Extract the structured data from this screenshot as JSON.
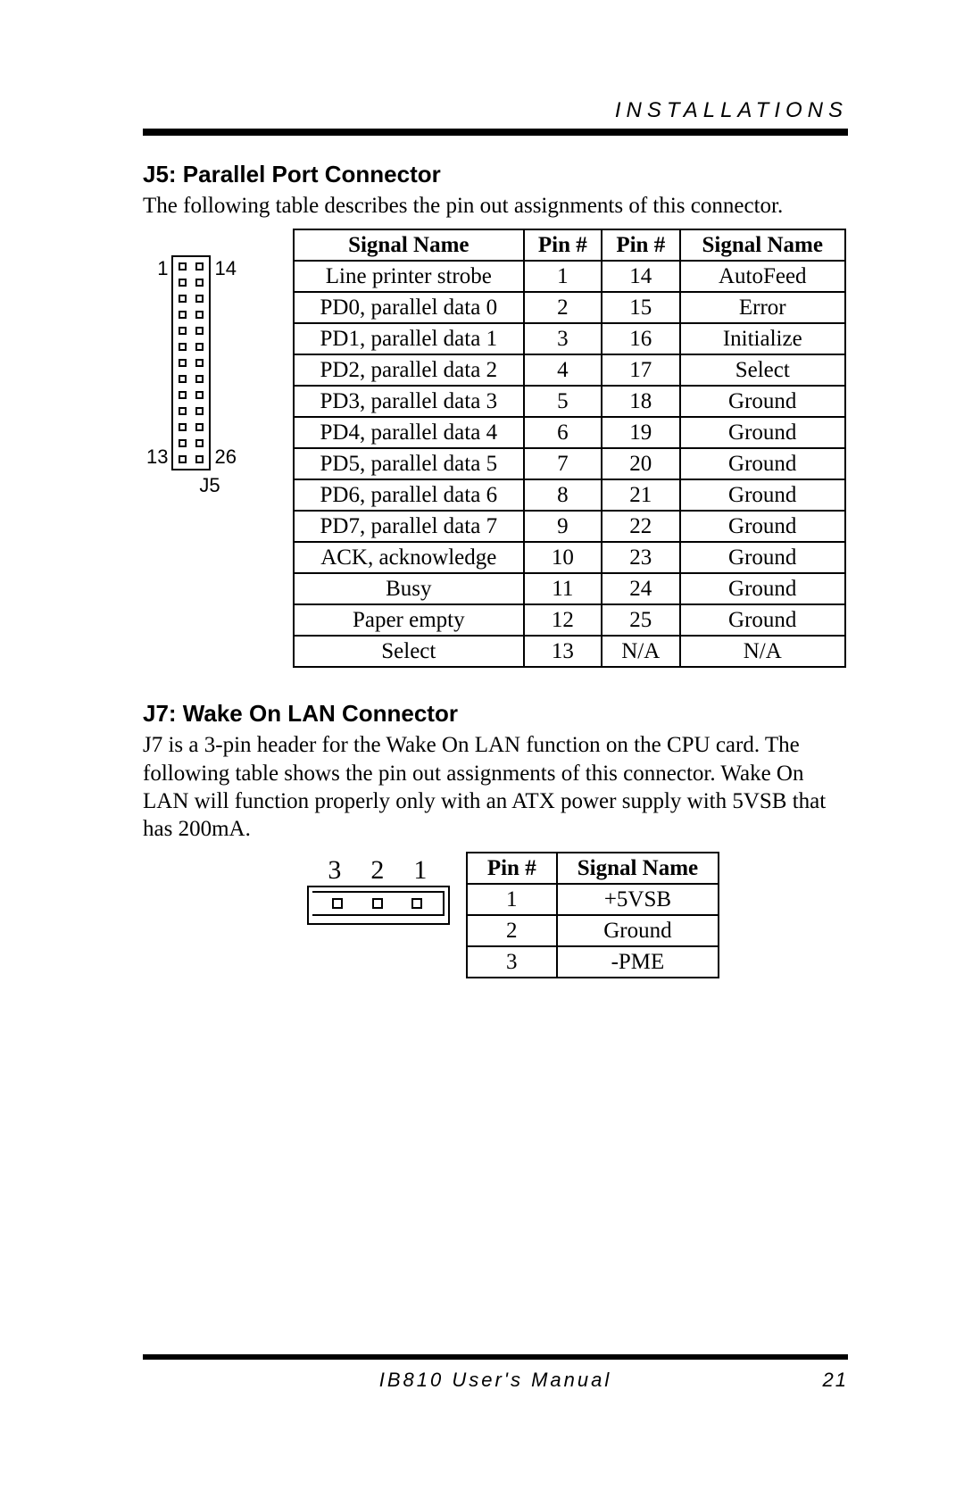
{
  "header": {
    "section": "INSTALLATIONS"
  },
  "j5": {
    "heading": "J5: Parallel Port Connector",
    "intro": "The following table describes the pin out assignments of this connector.",
    "diagram": {
      "left_top": "1",
      "right_top": "14",
      "left_bottom": "13",
      "right_bottom": "26",
      "caption": "J5",
      "rows": 13,
      "cols": 2,
      "pin_border_color": "#000000",
      "font_family": "Arial"
    },
    "table": {
      "columns": [
        "Signal Name",
        "Pin #",
        "Pin #",
        "Signal Name"
      ],
      "rows": [
        [
          "Line printer strobe",
          "1",
          "14",
          "AutoFeed"
        ],
        [
          "PD0, parallel data 0",
          "2",
          "15",
          "Error"
        ],
        [
          "PD1, parallel data 1",
          "3",
          "16",
          "Initialize"
        ],
        [
          "PD2, parallel data 2",
          "4",
          "17",
          "Select"
        ],
        [
          "PD3, parallel data 3",
          "5",
          "18",
          "Ground"
        ],
        [
          "PD4, parallel data 4",
          "6",
          "19",
          "Ground"
        ],
        [
          "PD5, parallel data 5",
          "7",
          "20",
          "Ground"
        ],
        [
          "PD6, parallel data 6",
          "8",
          "21",
          "Ground"
        ],
        [
          "PD7, parallel data 7",
          "9",
          "22",
          "Ground"
        ],
        [
          "ACK, acknowledge",
          "10",
          "23",
          "Ground"
        ],
        [
          "Busy",
          "11",
          "24",
          "Ground"
        ],
        [
          "Paper empty",
          "12",
          "25",
          "Ground"
        ],
        [
          "Select",
          "13",
          "N/A",
          "N/A"
        ]
      ],
      "border_color": "#000000",
      "header_fontweight": "bold",
      "cell_fontsize": 25
    }
  },
  "j7": {
    "heading": "J7: Wake On LAN Connector",
    "intro": "J7 is a 3-pin header for the Wake On LAN function on the CPU card. The following table shows the pin out assignments of this connector. Wake On LAN will function properly only with an ATX power supply with 5VSB that has 200mA.",
    "diagram": {
      "labels": [
        "3",
        "2",
        "1"
      ],
      "pins": 3,
      "border_color": "#000000"
    },
    "table": {
      "columns": [
        "Pin #",
        "Signal Name"
      ],
      "rows": [
        [
          "1",
          "+5VSB"
        ],
        [
          "2",
          "Ground"
        ],
        [
          "3",
          "-PME"
        ]
      ],
      "border_color": "#000000",
      "header_fontweight": "bold",
      "cell_fontsize": 25
    }
  },
  "footer": {
    "title": "IB810 User's Manual",
    "page": "21"
  },
  "style": {
    "page_bg": "#ffffff",
    "text_color": "#000000",
    "rule_color": "#000000",
    "body_font": "Times New Roman",
    "heading_font": "Arial"
  }
}
